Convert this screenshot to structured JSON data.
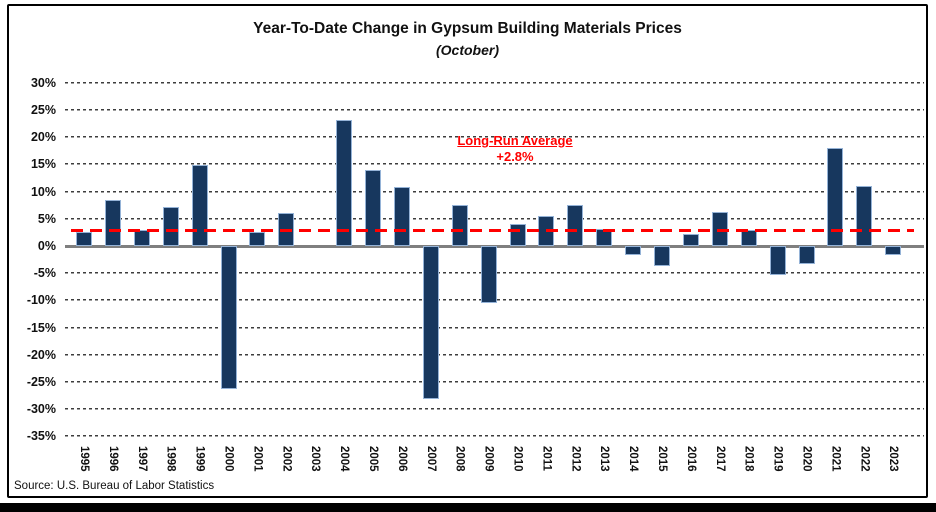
{
  "page": {
    "source": "Source: U.S. Bureau of Labor Statistics"
  },
  "annotation": {
    "line1": "Long-Run Average",
    "line2": "+2.8%"
  },
  "chart_data": {
    "type": "bar",
    "title": "Year-To-Date Change in Gypsum Building Materials Prices",
    "subtitle": "(October)",
    "xlabel": "",
    "ylabel": "",
    "ylim": [
      -35,
      30
    ],
    "ytick_step": 5,
    "ytick_labels": [
      "30%",
      "25%",
      "20%",
      "15%",
      "10%",
      "5%",
      "0%",
      "-5%",
      "-10%",
      "-15%",
      "-20%",
      "-25%",
      "-30%",
      "-35%"
    ],
    "grid": "horizontal-dashed",
    "legend": "none",
    "categories": [
      "1995",
      "1996",
      "1997",
      "1998",
      "1999",
      "2000",
      "2001",
      "2002",
      "2003",
      "2004",
      "2005",
      "2006",
      "2007",
      "2008",
      "2009",
      "2010",
      "2011",
      "2012",
      "2013",
      "2014",
      "2015",
      "2016",
      "2017",
      "2018",
      "2019",
      "2020",
      "2021",
      "2022",
      "2023"
    ],
    "values": [
      2.6,
      8.4,
      2.9,
      7.2,
      14.8,
      -26.2,
      2.6,
      6.1,
      0.0,
      23.1,
      13.9,
      10.8,
      -28.2,
      7.6,
      -10.4,
      4.0,
      5.6,
      7.6,
      3.1,
      -1.7,
      -3.6,
      2.2,
      6.2,
      2.9,
      -5.4,
      -3.3,
      18.0,
      11.1,
      -1.6
    ],
    "reference_line": {
      "value": 2.8,
      "label": "Long-Run Average",
      "value_label": "+2.8%",
      "color": "#FF0000",
      "style": "dashed"
    },
    "bar_color": "#17375E",
    "bar_border_color": "#95B3D7",
    "gridline_color": "#3d3d3d",
    "zero_axis_color": "#7f7f7f"
  }
}
